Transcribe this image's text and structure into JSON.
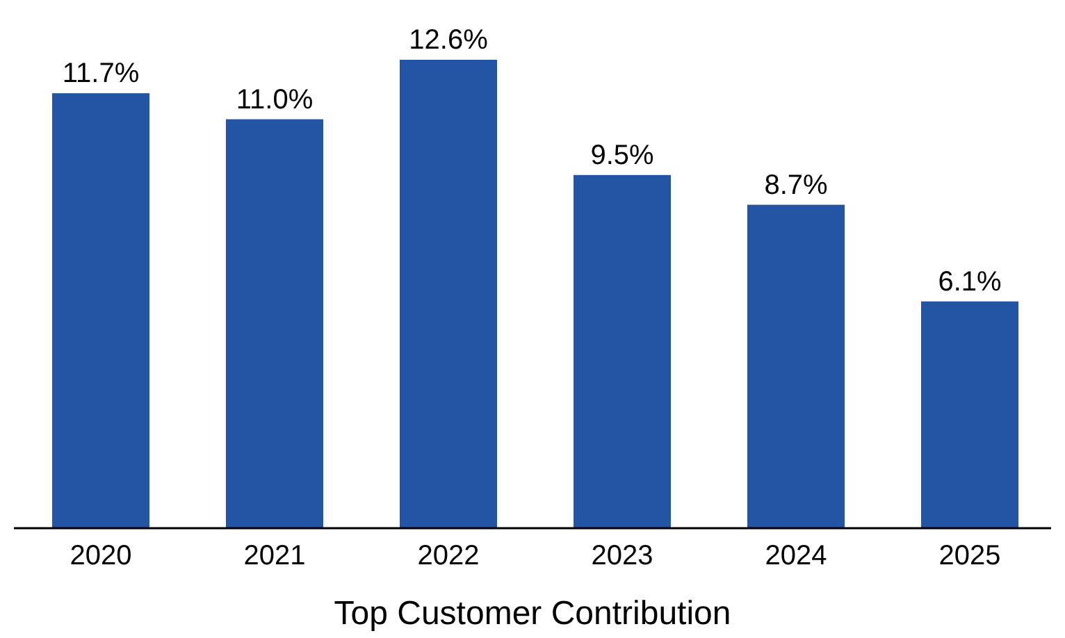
{
  "chart_data": {
    "type": "bar",
    "xlabel": "Top Customer Contribution",
    "categories": [
      "2020",
      "2021",
      "2022",
      "2023",
      "2024",
      "2025"
    ],
    "values": [
      11.7,
      11.0,
      12.6,
      9.5,
      8.7,
      6.1
    ],
    "value_labels": [
      "11.7%",
      "11.0%",
      "12.6%",
      "9.5%",
      "8.7%",
      "6.1%"
    ],
    "color": "#2455a4",
    "ylim": [
      0,
      12.6
    ],
    "tick_labels": "x"
  }
}
